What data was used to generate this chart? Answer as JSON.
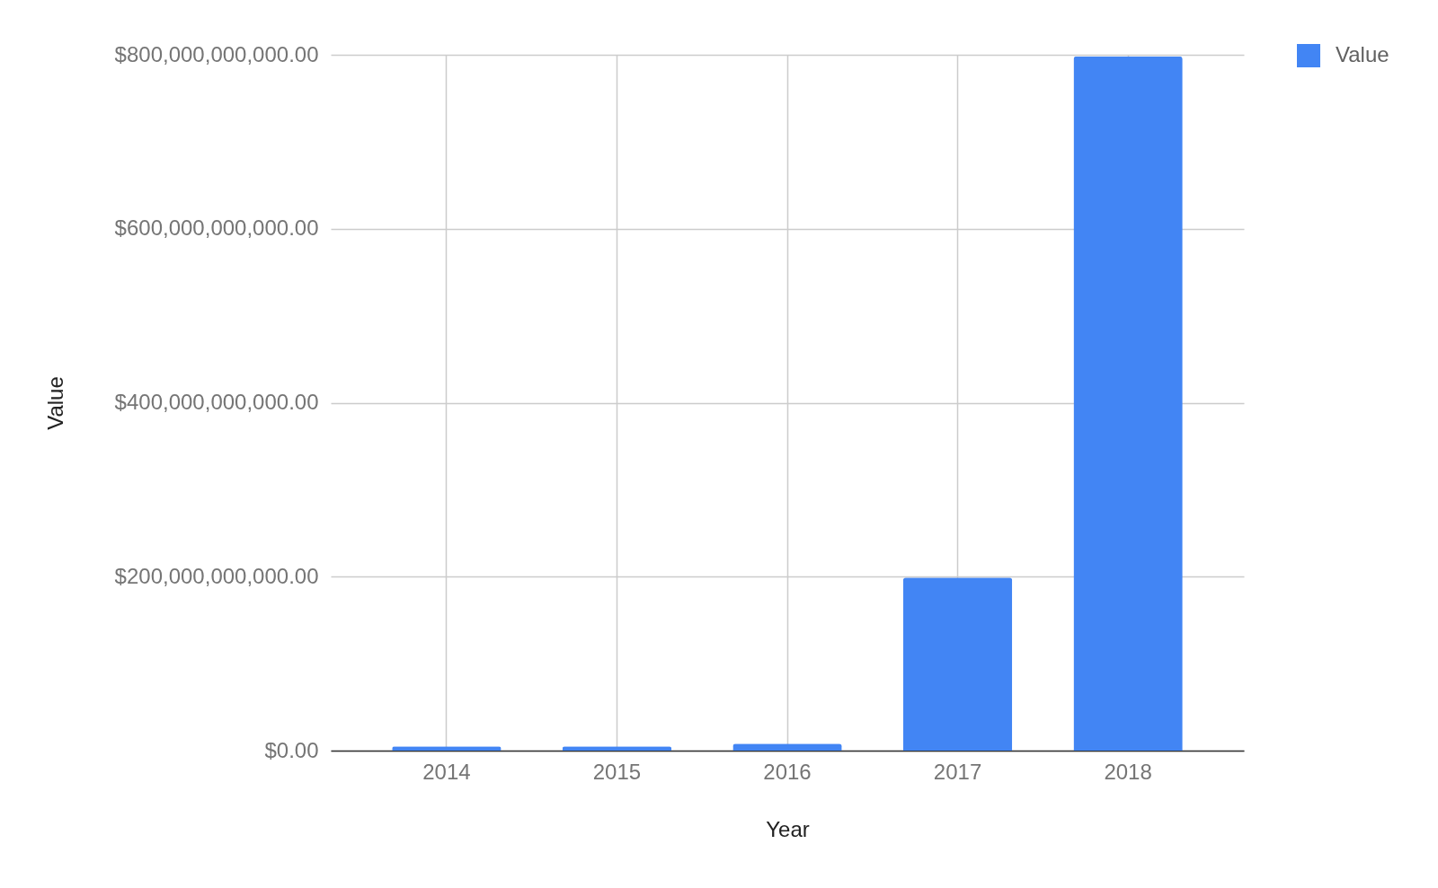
{
  "chart_data": {
    "type": "bar",
    "xlabel": "Year",
    "ylabel": "Value",
    "categories": [
      "2014",
      "2015",
      "2016",
      "2017",
      "2018"
    ],
    "series": [
      {
        "name": "Value",
        "color": "#4285f4",
        "values": [
          5000000000,
          5000000000,
          8000000000,
          199000000000,
          798000000000
        ]
      }
    ],
    "ylim": [
      0,
      800000000000
    ],
    "yticks": [
      {
        "value": 0,
        "label": "$0.00"
      },
      {
        "value": 200000000000,
        "label": "$200,000,000,000.00"
      },
      {
        "value": 400000000000,
        "label": "$400,000,000,000.00"
      },
      {
        "value": 600000000000,
        "label": "$600,000,000,000.00"
      },
      {
        "value": 800000000000,
        "label": "$800,000,000,000.00"
      }
    ],
    "grid": true,
    "legend": "top right"
  }
}
